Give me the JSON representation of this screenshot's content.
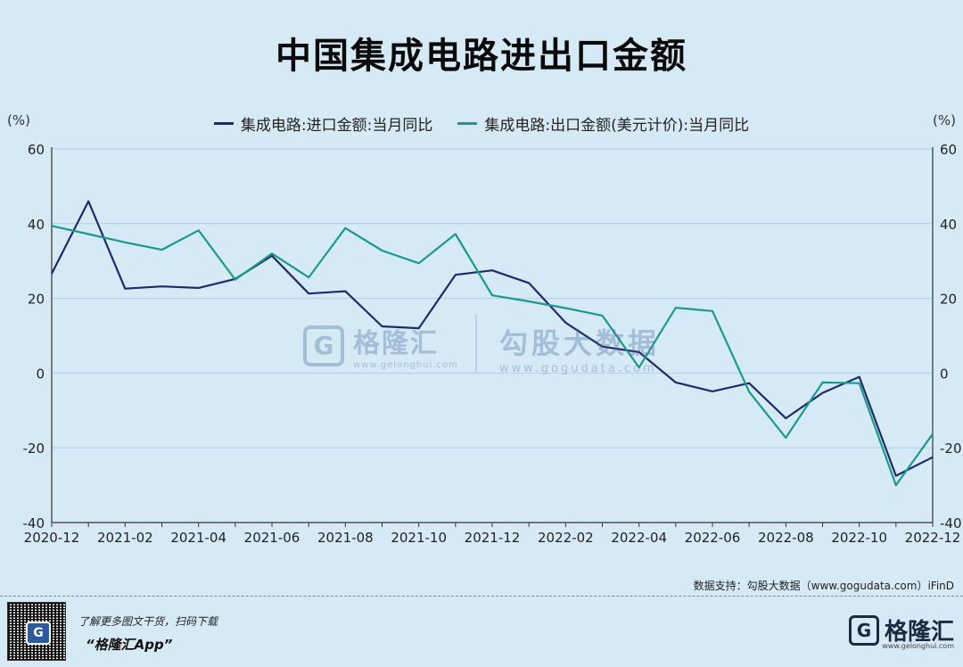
{
  "title": "中国集成电路进出口金额",
  "unit_left": "(%)",
  "unit_right": "(%)",
  "colors": {
    "import": "#1f2a6b",
    "export": "#1a9a8a",
    "grid": "#b8cbe0",
    "axis": "#333333"
  },
  "watermark": {
    "left_logo": "G",
    "left_name": "格隆汇",
    "left_url": "www.gelonghui.com",
    "right_name": "勾股大数据",
    "right_url": "www.gogudata.com"
  },
  "source": "数据支持：勾股大数据（www.gogudata.com）iFinD",
  "promo_line1": "了解更多图文干货，扫码下载",
  "promo_line2": "“格隆汇App”",
  "brand": {
    "logo": "G",
    "name": "格隆汇",
    "url": "www.gelonghui.com"
  },
  "qr_icon": "qr-code-icon",
  "chart_data": {
    "type": "line",
    "title": "中国集成电路进出口金额",
    "ylabel": "(%)",
    "ylim": [
      -40,
      60
    ],
    "yticks": [
      60,
      40,
      20,
      0,
      -20,
      -40
    ],
    "grid": true,
    "legend_position": "top-center",
    "x": [
      "2020-12",
      "2021-01",
      "2021-02",
      "2021-03",
      "2021-04",
      "2021-05",
      "2021-06",
      "2021-07",
      "2021-08",
      "2021-09",
      "2021-10",
      "2021-11",
      "2021-12",
      "2022-01",
      "2022-02",
      "2022-03",
      "2022-04",
      "2022-05",
      "2022-06",
      "2022-07",
      "2022-08",
      "2022-09",
      "2022-10",
      "2022-11",
      "2022-12"
    ],
    "xtick_labels": [
      "2020-12",
      "2021-02",
      "2021-04",
      "2021-06",
      "2021-08",
      "2021-10",
      "2021-12",
      "2022-02",
      "2022-04",
      "2022-06",
      "2022-08",
      "2022-10",
      "2022-12"
    ],
    "series": [
      {
        "name": "集成电路:进口金额:当月同比",
        "color": "#1f2a6b",
        "values": [
          26.6,
          46.0,
          22.6,
          23.2,
          22.8,
          25.2,
          31.4,
          21.3,
          21.9,
          12.5,
          12.0,
          26.3,
          27.5,
          24.1,
          13.5,
          7.1,
          5.6,
          -2.5,
          -4.9,
          -2.7,
          -12.1,
          -5.3,
          -1.0,
          -27.5,
          -22.5
        ]
      },
      {
        "name": "集成电路:出口金额(美元计价):当月同比",
        "color": "#1a9a8a",
        "values": [
          39.4,
          37.2,
          35.0,
          33.0,
          38.2,
          25.0,
          32.0,
          25.6,
          38.8,
          32.8,
          29.4,
          37.2,
          20.8,
          19.2,
          17.4,
          15.4,
          1.5,
          17.5,
          16.6,
          -5.0,
          -17.3,
          -2.5,
          -2.7,
          -30.0,
          -16.3
        ]
      }
    ]
  }
}
